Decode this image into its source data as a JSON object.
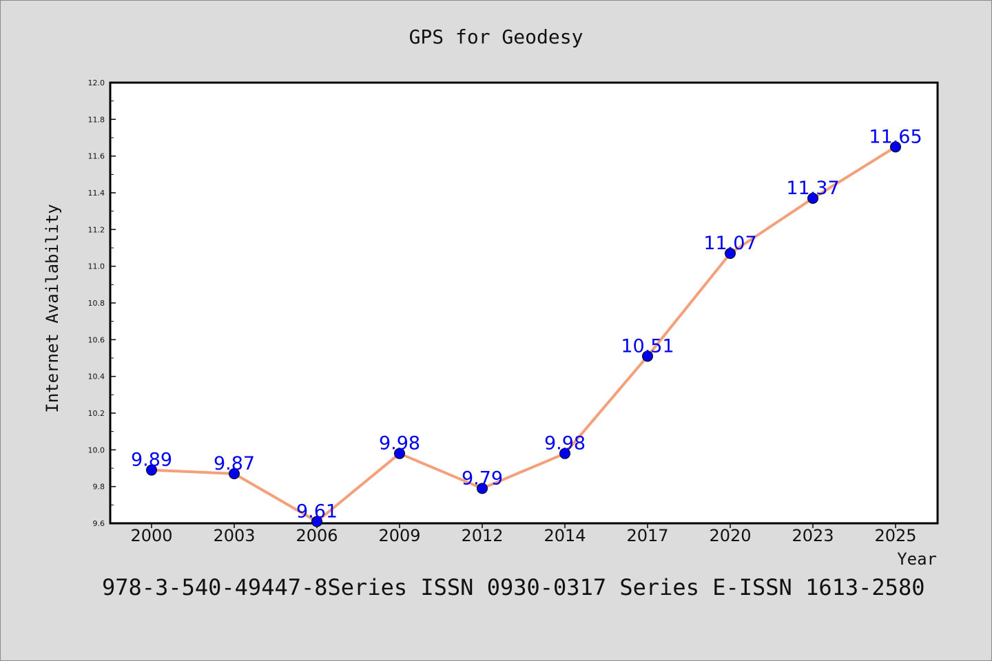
{
  "chart_data": {
    "type": "line",
    "title": "GPS for Geodesy",
    "xlabel": "Year",
    "ylabel": "Internet Availability",
    "categories": [
      "2000",
      "2003",
      "2006",
      "2009",
      "2012",
      "2014",
      "2017",
      "2020",
      "2023",
      "2025"
    ],
    "series": [
      {
        "values": [
          9.89,
          9.87,
          9.61,
          9.98,
          9.79,
          9.98,
          10.51,
          11.07,
          11.37,
          11.65
        ],
        "labels": [
          "9.89",
          "9.87",
          "9.61",
          "9.98",
          "9.79",
          "9.98",
          "10.51",
          "11.07",
          "11.37",
          "11.65"
        ],
        "line_color": "#f4a07a",
        "marker_color": "#0000ee",
        "label_color": "#0000ee"
      }
    ],
    "ylim": [
      9.6,
      12.0
    ],
    "yticks": [
      "9.6",
      "9.8",
      "10.0",
      "10.2",
      "10.4",
      "10.6",
      "10.8",
      "11.0",
      "11.2",
      "11.4",
      "11.6",
      "11.8",
      "12.0"
    ],
    "grid": false,
    "legend": "none"
  },
  "footer": "978-3-540-49447-8Series ISSN 0930-0317 Series E-ISSN 1613-2580",
  "colors": {
    "background": "#dcdcdc",
    "plot_background": "#ffffff",
    "axis": "#000000"
  }
}
